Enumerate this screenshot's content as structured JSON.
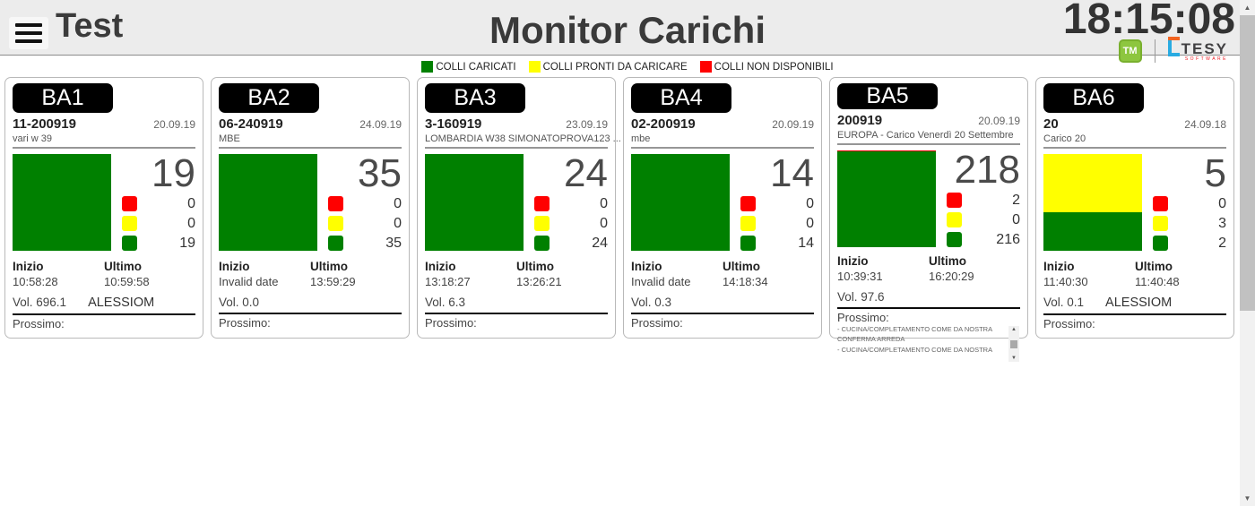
{
  "header": {
    "menu_label": "Test",
    "title": "Monitor Carichi",
    "clock": "18:15:08",
    "tm_logo": "TM",
    "tesy_logo": "TESY",
    "tesy_sub": "SOFTWARE"
  },
  "legend": {
    "items": [
      {
        "label": "COLLI CARICATI",
        "color": "#008000"
      },
      {
        "label": "COLLI PRONTI DA CARICARE",
        "color": "#ffff00"
      },
      {
        "label": "COLLI NON DISPONIBILI",
        "color": "#ff0000"
      }
    ]
  },
  "labels": {
    "inizio": "Inizio",
    "ultimo": "Ultimo",
    "prossimo": "Prossimo:"
  },
  "colors": {
    "red": "#ff0000",
    "yellow": "#ffff00",
    "green": "#008000"
  },
  "cards": [
    {
      "bay": "BA1",
      "code": "11-200919",
      "date": "20.09.19",
      "description": "vari w 39",
      "total": 19,
      "red": 0,
      "yellow": 0,
      "green": 19,
      "inizio": "10:58:28",
      "ultimo": "10:59:58",
      "volume": "Vol. 696.1",
      "operator": "ALESSIOM",
      "prossimo_lines": []
    },
    {
      "bay": "BA2",
      "code": "06-240919",
      "date": "24.09.19",
      "description": "MBE",
      "total": 35,
      "red": 0,
      "yellow": 0,
      "green": 35,
      "inizio": "Invalid date",
      "ultimo": "13:59:29",
      "volume": "Vol. 0.0",
      "operator": "",
      "prossimo_lines": []
    },
    {
      "bay": "BA3",
      "code": "3-160919",
      "date": "23.09.19",
      "description": "LOMBARDIA W38 SIMONATOPROVA123 ...",
      "total": 24,
      "red": 0,
      "yellow": 0,
      "green": 24,
      "inizio": "13:18:27",
      "ultimo": "13:26:21",
      "volume": "Vol. 6.3",
      "operator": "",
      "prossimo_lines": []
    },
    {
      "bay": "BA4",
      "code": "02-200919",
      "date": "20.09.19",
      "description": "mbe",
      "total": 14,
      "red": 0,
      "yellow": 0,
      "green": 14,
      "inizio": "Invalid date",
      "ultimo": "14:18:34",
      "volume": "Vol. 0.3",
      "operator": "",
      "prossimo_lines": []
    },
    {
      "bay": "BA5",
      "code": "200919",
      "date": "20.09.19",
      "description": "EUROPA - Carico Venerdì 20 Settembre",
      "total": 218,
      "red": 2,
      "yellow": 0,
      "green": 216,
      "inizio": "10:39:31",
      "ultimo": "16:20:29",
      "volume": "Vol. 97.6",
      "operator": "",
      "prossimo_lines": [
        "- CUCINA/COMPLETAMENTO COME DA NOSTRA CONFERMA ARREDA",
        "- CUCINA/COMPLETAMENTO COME DA NOSTRA"
      ]
    },
    {
      "bay": "BA6",
      "code": "20",
      "date": "24.09.18",
      "description": "Carico 20",
      "total": 5,
      "red": 0,
      "yellow": 3,
      "green": 2,
      "inizio": "11:40:30",
      "ultimo": "11:40:48",
      "volume": "Vol. 0.1",
      "operator": "ALESSIOM",
      "prossimo_lines": []
    }
  ]
}
